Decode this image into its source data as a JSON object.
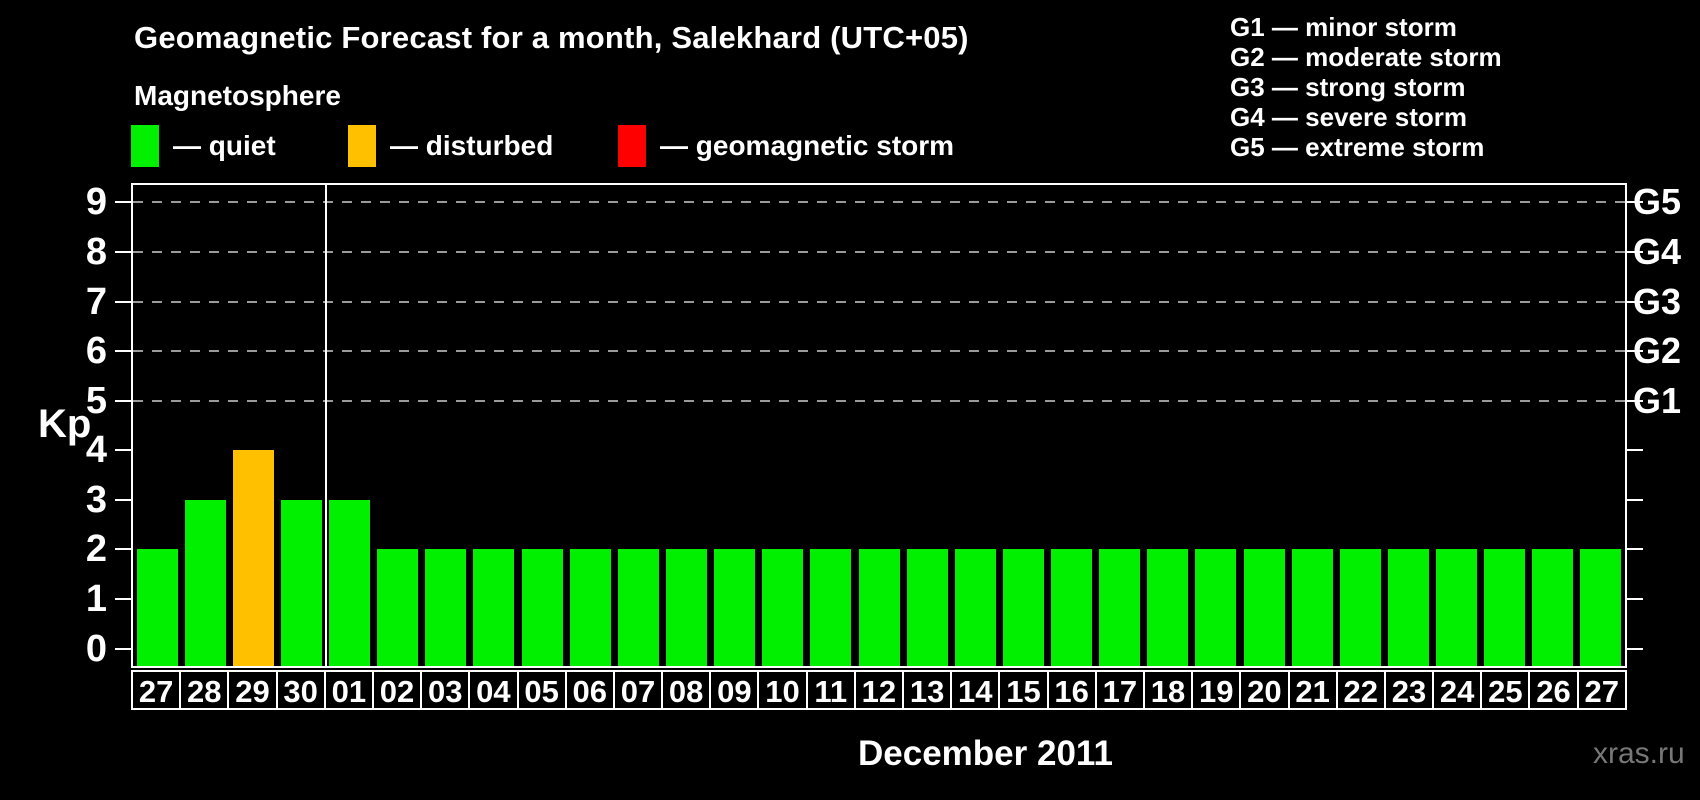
{
  "title": "Geomagnetic Forecast for a month, Salekhard (UTC+05)",
  "subtitle": "Magnetosphere",
  "legend": {
    "items": [
      {
        "key": "quiet",
        "label": "— quiet",
        "color": "#00f000"
      },
      {
        "key": "disturbed",
        "label": "— disturbed",
        "color": "#ffc000"
      },
      {
        "key": "storm",
        "label": "— geomagnetic storm",
        "color": "#ff0000"
      }
    ]
  },
  "g_legend": {
    "items": [
      {
        "text": "G1 — minor storm"
      },
      {
        "text": "G2 — moderate storm"
      },
      {
        "text": "G3 — strong storm"
      },
      {
        "text": "G4 — severe storm"
      },
      {
        "text": "G5 — extreme storm"
      }
    ]
  },
  "chart_data": {
    "type": "bar",
    "title": "Geomagnetic Forecast for a month, Salekhard (UTC+05)",
    "xlabel": "December 2011",
    "ylabel": "Kp",
    "ylim": [
      -0.35,
      9.35
    ],
    "yticks": [
      0,
      1,
      2,
      3,
      4,
      5,
      6,
      7,
      8,
      9
    ],
    "gridlines_kp": [
      5,
      6,
      7,
      8,
      9
    ],
    "right_axis": [
      {
        "value": 5,
        "label": "G1"
      },
      {
        "value": 6,
        "label": "G2"
      },
      {
        "value": 7,
        "label": "G3"
      },
      {
        "value": 8,
        "label": "G4"
      },
      {
        "value": 9,
        "label": "G5"
      }
    ],
    "categories": [
      "27",
      "28",
      "29",
      "30",
      "01",
      "02",
      "03",
      "04",
      "05",
      "06",
      "07",
      "08",
      "09",
      "10",
      "11",
      "12",
      "13",
      "14",
      "15",
      "16",
      "17",
      "18",
      "19",
      "20",
      "21",
      "22",
      "23",
      "24",
      "25",
      "26",
      "27"
    ],
    "values": [
      2,
      3,
      4,
      3,
      3,
      2,
      2,
      2,
      2,
      2,
      2,
      2,
      2,
      2,
      2,
      2,
      2,
      2,
      2,
      2,
      2,
      2,
      2,
      2,
      2,
      2,
      2,
      2,
      2,
      2,
      2
    ],
    "states": [
      "quiet",
      "quiet",
      "disturbed",
      "quiet",
      "quiet",
      "quiet",
      "quiet",
      "quiet",
      "quiet",
      "quiet",
      "quiet",
      "quiet",
      "quiet",
      "quiet",
      "quiet",
      "quiet",
      "quiet",
      "quiet",
      "quiet",
      "quiet",
      "quiet",
      "quiet",
      "quiet",
      "quiet",
      "quiet",
      "quiet",
      "quiet",
      "quiet",
      "quiet",
      "quiet",
      "quiet"
    ],
    "colors": {
      "quiet": "#00f000",
      "disturbed": "#ffc000",
      "storm": "#ff0000"
    },
    "month_boundary_after_index": 3,
    "legend_position": "top",
    "grid": "horizontal-dashed-on-storm-levels-only"
  },
  "footer": {
    "month_label": "December 2011",
    "watermark": "xras.ru"
  }
}
